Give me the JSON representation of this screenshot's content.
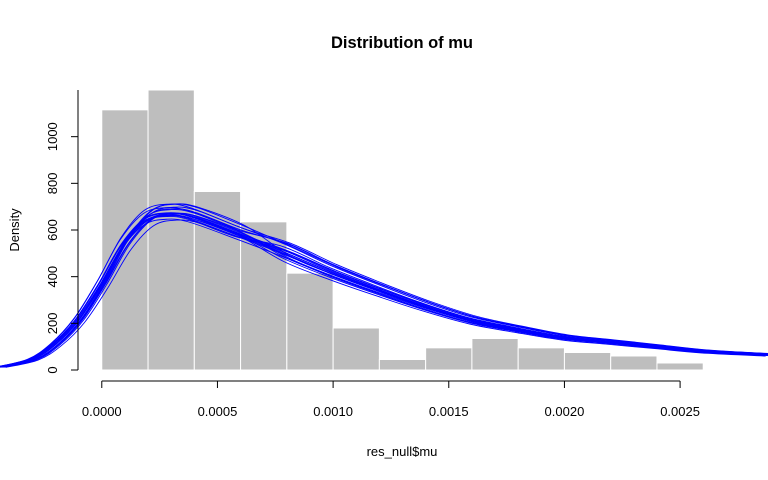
{
  "chart_data": {
    "type": "histogram",
    "title": "Distribution of mu",
    "xlabel": "res_null$mu",
    "ylabel": "Density",
    "xlim": [
      -0.00044,
      0.00288
    ],
    "ylim": [
      0,
      1200
    ],
    "xticks": [
      "0.0000",
      "0.0005",
      "0.0010",
      "0.0015",
      "0.0020",
      "0.0025"
    ],
    "xtick_values": [
      0,
      0.0005,
      0.001,
      0.0015,
      0.002,
      0.0025
    ],
    "yticks": [
      "0",
      "200",
      "400",
      "600",
      "800",
      "1000"
    ],
    "ytick_values": [
      0,
      200,
      400,
      600,
      800,
      1000
    ],
    "bin_width": 0.0002,
    "bins": [
      {
        "x0": 0.0,
        "x1": 0.0002,
        "density": 1115
      },
      {
        "x0": 0.0002,
        "x1": 0.0004,
        "density": 1200
      },
      {
        "x0": 0.0004,
        "x1": 0.0006,
        "density": 765
      },
      {
        "x0": 0.0006,
        "x1": 0.0008,
        "density": 635
      },
      {
        "x0": 0.0008,
        "x1": 0.001,
        "density": 415
      },
      {
        "x0": 0.001,
        "x1": 0.0012,
        "density": 180
      },
      {
        "x0": 0.0012,
        "x1": 0.0014,
        "density": 45
      },
      {
        "x0": 0.0014,
        "x1": 0.0016,
        "density": 95
      },
      {
        "x0": 0.0016,
        "x1": 0.0018,
        "density": 135
      },
      {
        "x0": 0.0018,
        "x1": 0.002,
        "density": 95
      },
      {
        "x0": 0.002,
        "x1": 0.0022,
        "density": 75
      },
      {
        "x0": 0.0022,
        "x1": 0.0024,
        "density": 60
      },
      {
        "x0": 0.0024,
        "x1": 0.0026,
        "density": 30
      }
    ],
    "density_curves": {
      "count": 20,
      "color": "#0000ff",
      "x": [
        -0.00044,
        -0.0003,
        -0.0002,
        -0.0001,
        0.0,
        0.0001,
        0.0002,
        0.0003,
        0.0004,
        0.0006,
        0.0008,
        0.001,
        0.0012,
        0.0014,
        0.0016,
        0.0018,
        0.002,
        0.0022,
        0.0024,
        0.0026,
        0.00288
      ],
      "y": [
        12,
        45,
        110,
        215,
        370,
        545,
        655,
        680,
        665,
        590,
        505,
        420,
        345,
        275,
        215,
        175,
        140,
        120,
        100,
        80,
        65
      ],
      "scale_spread": 0.06,
      "shift_spread": 2.5e-05
    },
    "bar_color": "#bebebe",
    "bar_border": "#ffffff",
    "grid": false,
    "legend": "none"
  }
}
